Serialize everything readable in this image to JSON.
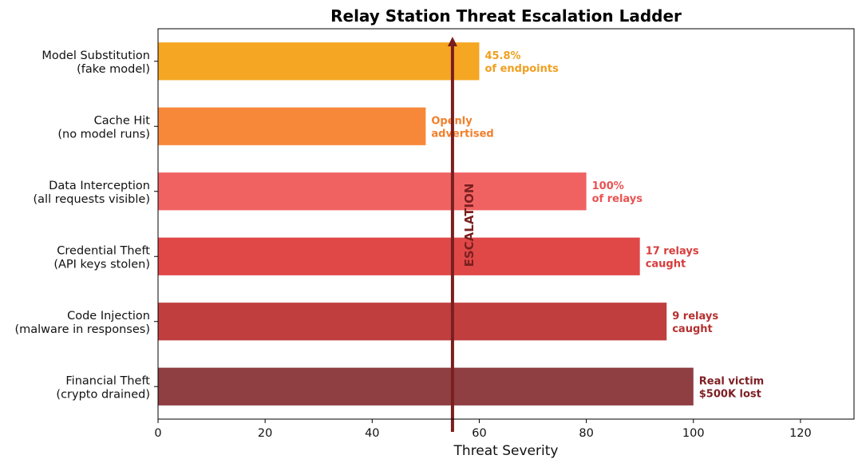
{
  "chart_data": {
    "type": "bar",
    "orientation": "horizontal",
    "title": "Relay Station Threat Escalation Ladder",
    "xlabel": "Threat Severity",
    "ylabel": "",
    "xlim": [
      0,
      130
    ],
    "xticks": [
      0,
      20,
      40,
      60,
      80,
      100,
      120
    ],
    "grid": false,
    "categories": [
      {
        "line1": "Model Substitution",
        "line2": "(fake model)",
        "value": 60,
        "color": "#f5a623",
        "anno_color": "#f0a020",
        "annotation": [
          "45.8%",
          "of endpoints"
        ]
      },
      {
        "line1": "Cache Hit",
        "line2": "(no model runs)",
        "value": 50,
        "color": "#f7883a",
        "anno_color": "#f27f2c",
        "annotation": [
          "Openly",
          "advertised"
        ]
      },
      {
        "line1": "Data Interception",
        "line2": "(all requests visible)",
        "value": 80,
        "color": "#f06262",
        "anno_color": "#ea5252",
        "annotation": [
          "100%",
          "of relays"
        ]
      },
      {
        "line1": "Credential Theft",
        "line2": "(API keys stolen)",
        "value": 90,
        "color": "#e04848",
        "anno_color": "#d83c3c",
        "annotation": [
          "17 relays",
          "caught"
        ]
      },
      {
        "line1": "Code Injection",
        "line2": "(malware in responses)",
        "value": 95,
        "color": "#c13e3e",
        "anno_color": "#b53030",
        "annotation": [
          "9 relays",
          "caught"
        ]
      },
      {
        "line1": "Financial Theft",
        "line2": "(crypto drained)",
        "value": 100,
        "color": "#8f3e42",
        "anno_color": "#7e1f24",
        "annotation": [
          "Real victim",
          "$500K lost"
        ]
      }
    ],
    "escalation_arrow": {
      "x": 55,
      "label": "ESCALATION",
      "color": "#7a1f1f"
    }
  }
}
